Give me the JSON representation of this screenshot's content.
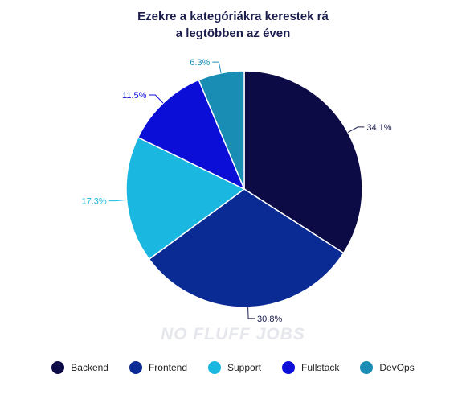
{
  "chart_data": {
    "type": "pie",
    "title_lines": [
      "Ezekre a kategóriákra kerestek rá",
      "a legtöbben az éven"
    ],
    "categories": [
      "Backend",
      "Frontend",
      "Support",
      "Fullstack",
      "DevOps"
    ],
    "values": [
      34.1,
      30.8,
      17.3,
      11.5,
      6.3
    ],
    "value_labels": [
      "34.1%",
      "30.8%",
      "17.3%",
      "11.5%",
      "6.3%"
    ],
    "colors": [
      "#0d0b45",
      "#0a2a94",
      "#1ab7e0",
      "#0a0ed6",
      "#1a8db5"
    ],
    "label_colors": [
      "#1b1d4d",
      "#1b1d4d",
      "#1ab7e0",
      "#0a0ed6",
      "#1a8db5"
    ],
    "legend_position": "bottom",
    "start_angle_deg": 0,
    "direction": "clockwise"
  },
  "watermark": "NO FLUFF JOBS"
}
